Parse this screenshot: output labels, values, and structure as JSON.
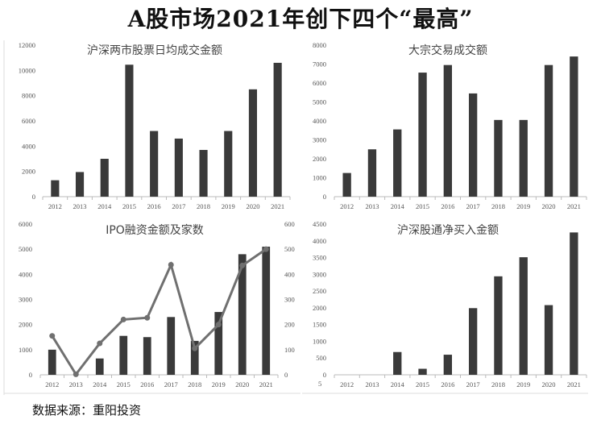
{
  "title": "A股市场2021年创下四个“最高”",
  "source": "数据来源：重阳投资",
  "colors": {
    "bar": "#3a3a3a",
    "line": "#707070",
    "axis": "#bbbbbb"
  },
  "chart_data": [
    {
      "type": "bar",
      "title": "沪深两市股票日均成交金额",
      "categories": [
        "2012",
        "2013",
        "2014",
        "2015",
        "2016",
        "2017",
        "2018",
        "2019",
        "2020",
        "2021"
      ],
      "values": [
        1300,
        1950,
        3000,
        10450,
        5200,
        4600,
        3700,
        5200,
        8500,
        10600
      ],
      "ylim": [
        0,
        12000
      ],
      "yticks": [
        0,
        2000,
        4000,
        6000,
        8000,
        10000,
        12000
      ]
    },
    {
      "type": "bar",
      "title": "大宗交易成交额",
      "categories": [
        "2012",
        "2013",
        "2014",
        "2015",
        "2016",
        "2017",
        "2018",
        "2019",
        "2020",
        "2021"
      ],
      "values": [
        1250,
        2500,
        3550,
        6550,
        6950,
        5450,
        4050,
        4050,
        6950,
        7400
      ],
      "ylim": [
        0,
        8000
      ],
      "yticks": [
        0,
        1000,
        2000,
        3000,
        4000,
        5000,
        6000,
        7000,
        8000
      ]
    },
    {
      "type": "bar+line",
      "title": "IPO融资金额及家数",
      "categories": [
        "2012",
        "2013",
        "2014",
        "2015",
        "2016",
        "2017",
        "2018",
        "2019",
        "2020",
        "2021"
      ],
      "series": [
        {
          "name": "IPO融资金额",
          "kind": "bar",
          "axis": "left",
          "values": [
            1000,
            0,
            650,
            1550,
            1500,
            2300,
            1350,
            2500,
            4800,
            5100
          ]
        },
        {
          "name": "IPO家数",
          "kind": "line",
          "axis": "right",
          "values": [
            155,
            2,
            125,
            220,
            227,
            438,
            105,
            200,
            435,
            500
          ]
        }
      ],
      "ylim": [
        0,
        6000
      ],
      "yticks": [
        0,
        1000,
        2000,
        3000,
        4000,
        5000,
        6000
      ],
      "y2lim": [
        0,
        600
      ],
      "y2ticks": [
        0,
        100,
        200,
        300,
        400,
        500,
        600
      ]
    },
    {
      "type": "bar",
      "title": "沪深股通净买入金额",
      "categories": [
        "2012",
        "2013",
        "2014",
        "2015",
        "2016",
        "2017",
        "2018",
        "2019",
        "2020",
        "2021"
      ],
      "values": [
        0,
        0,
        680,
        180,
        600,
        1990,
        2940,
        3510,
        2080,
        4250
      ],
      "ylim": [
        0,
        4500
      ],
      "yticks": [
        0,
        500,
        1000,
        1500,
        2000,
        2500,
        3000,
        3500,
        4000,
        4500
      ],
      "extra_label": "5"
    }
  ]
}
